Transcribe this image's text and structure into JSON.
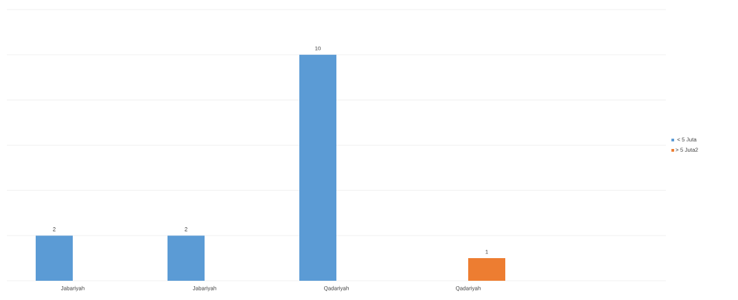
{
  "chart_data": {
    "type": "bar",
    "categories": [
      "Jabariyah",
      "Jabariyah",
      "Qadariyah",
      "Qadariyah",
      null
    ],
    "series": [
      {
        "name": "< 5 Juta",
        "color": "#5b9bd5",
        "values": [
          2,
          2,
          10,
          null,
          null
        ]
      },
      {
        "name": "> 5 Juta2",
        "color": "#ed7d31",
        "values": [
          null,
          null,
          null,
          1,
          null
        ]
      }
    ],
    "tick_labels": "x",
    "grid": "y",
    "legend": "right",
    "data_labels": true
  }
}
